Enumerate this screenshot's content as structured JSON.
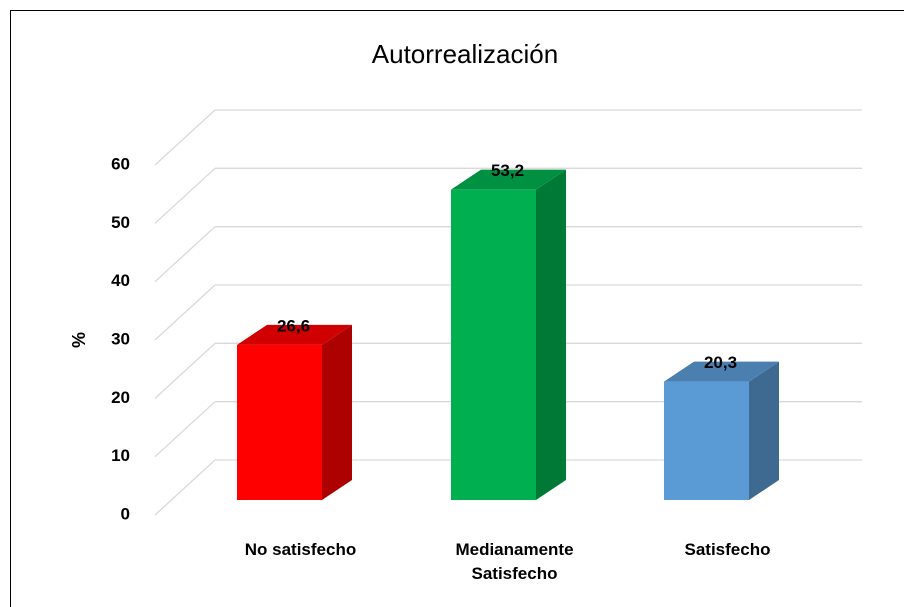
{
  "chart_data": {
    "type": "bar3d",
    "title": "Autorrealización",
    "y_label": "%",
    "categories": [
      "No satisfecho",
      "Medianamente Satisfecho",
      "Satisfecho"
    ],
    "values": [
      26.6,
      53.2,
      20.3
    ],
    "value_labels": [
      "26,6",
      "53,2",
      "20,3"
    ],
    "colors": [
      "#ff0000",
      "#00b050",
      "#5b9bd5"
    ],
    "ylim": [
      0,
      60
    ],
    "yticks": [
      0,
      10,
      20,
      30,
      40,
      50,
      60
    ],
    "grid": true
  }
}
